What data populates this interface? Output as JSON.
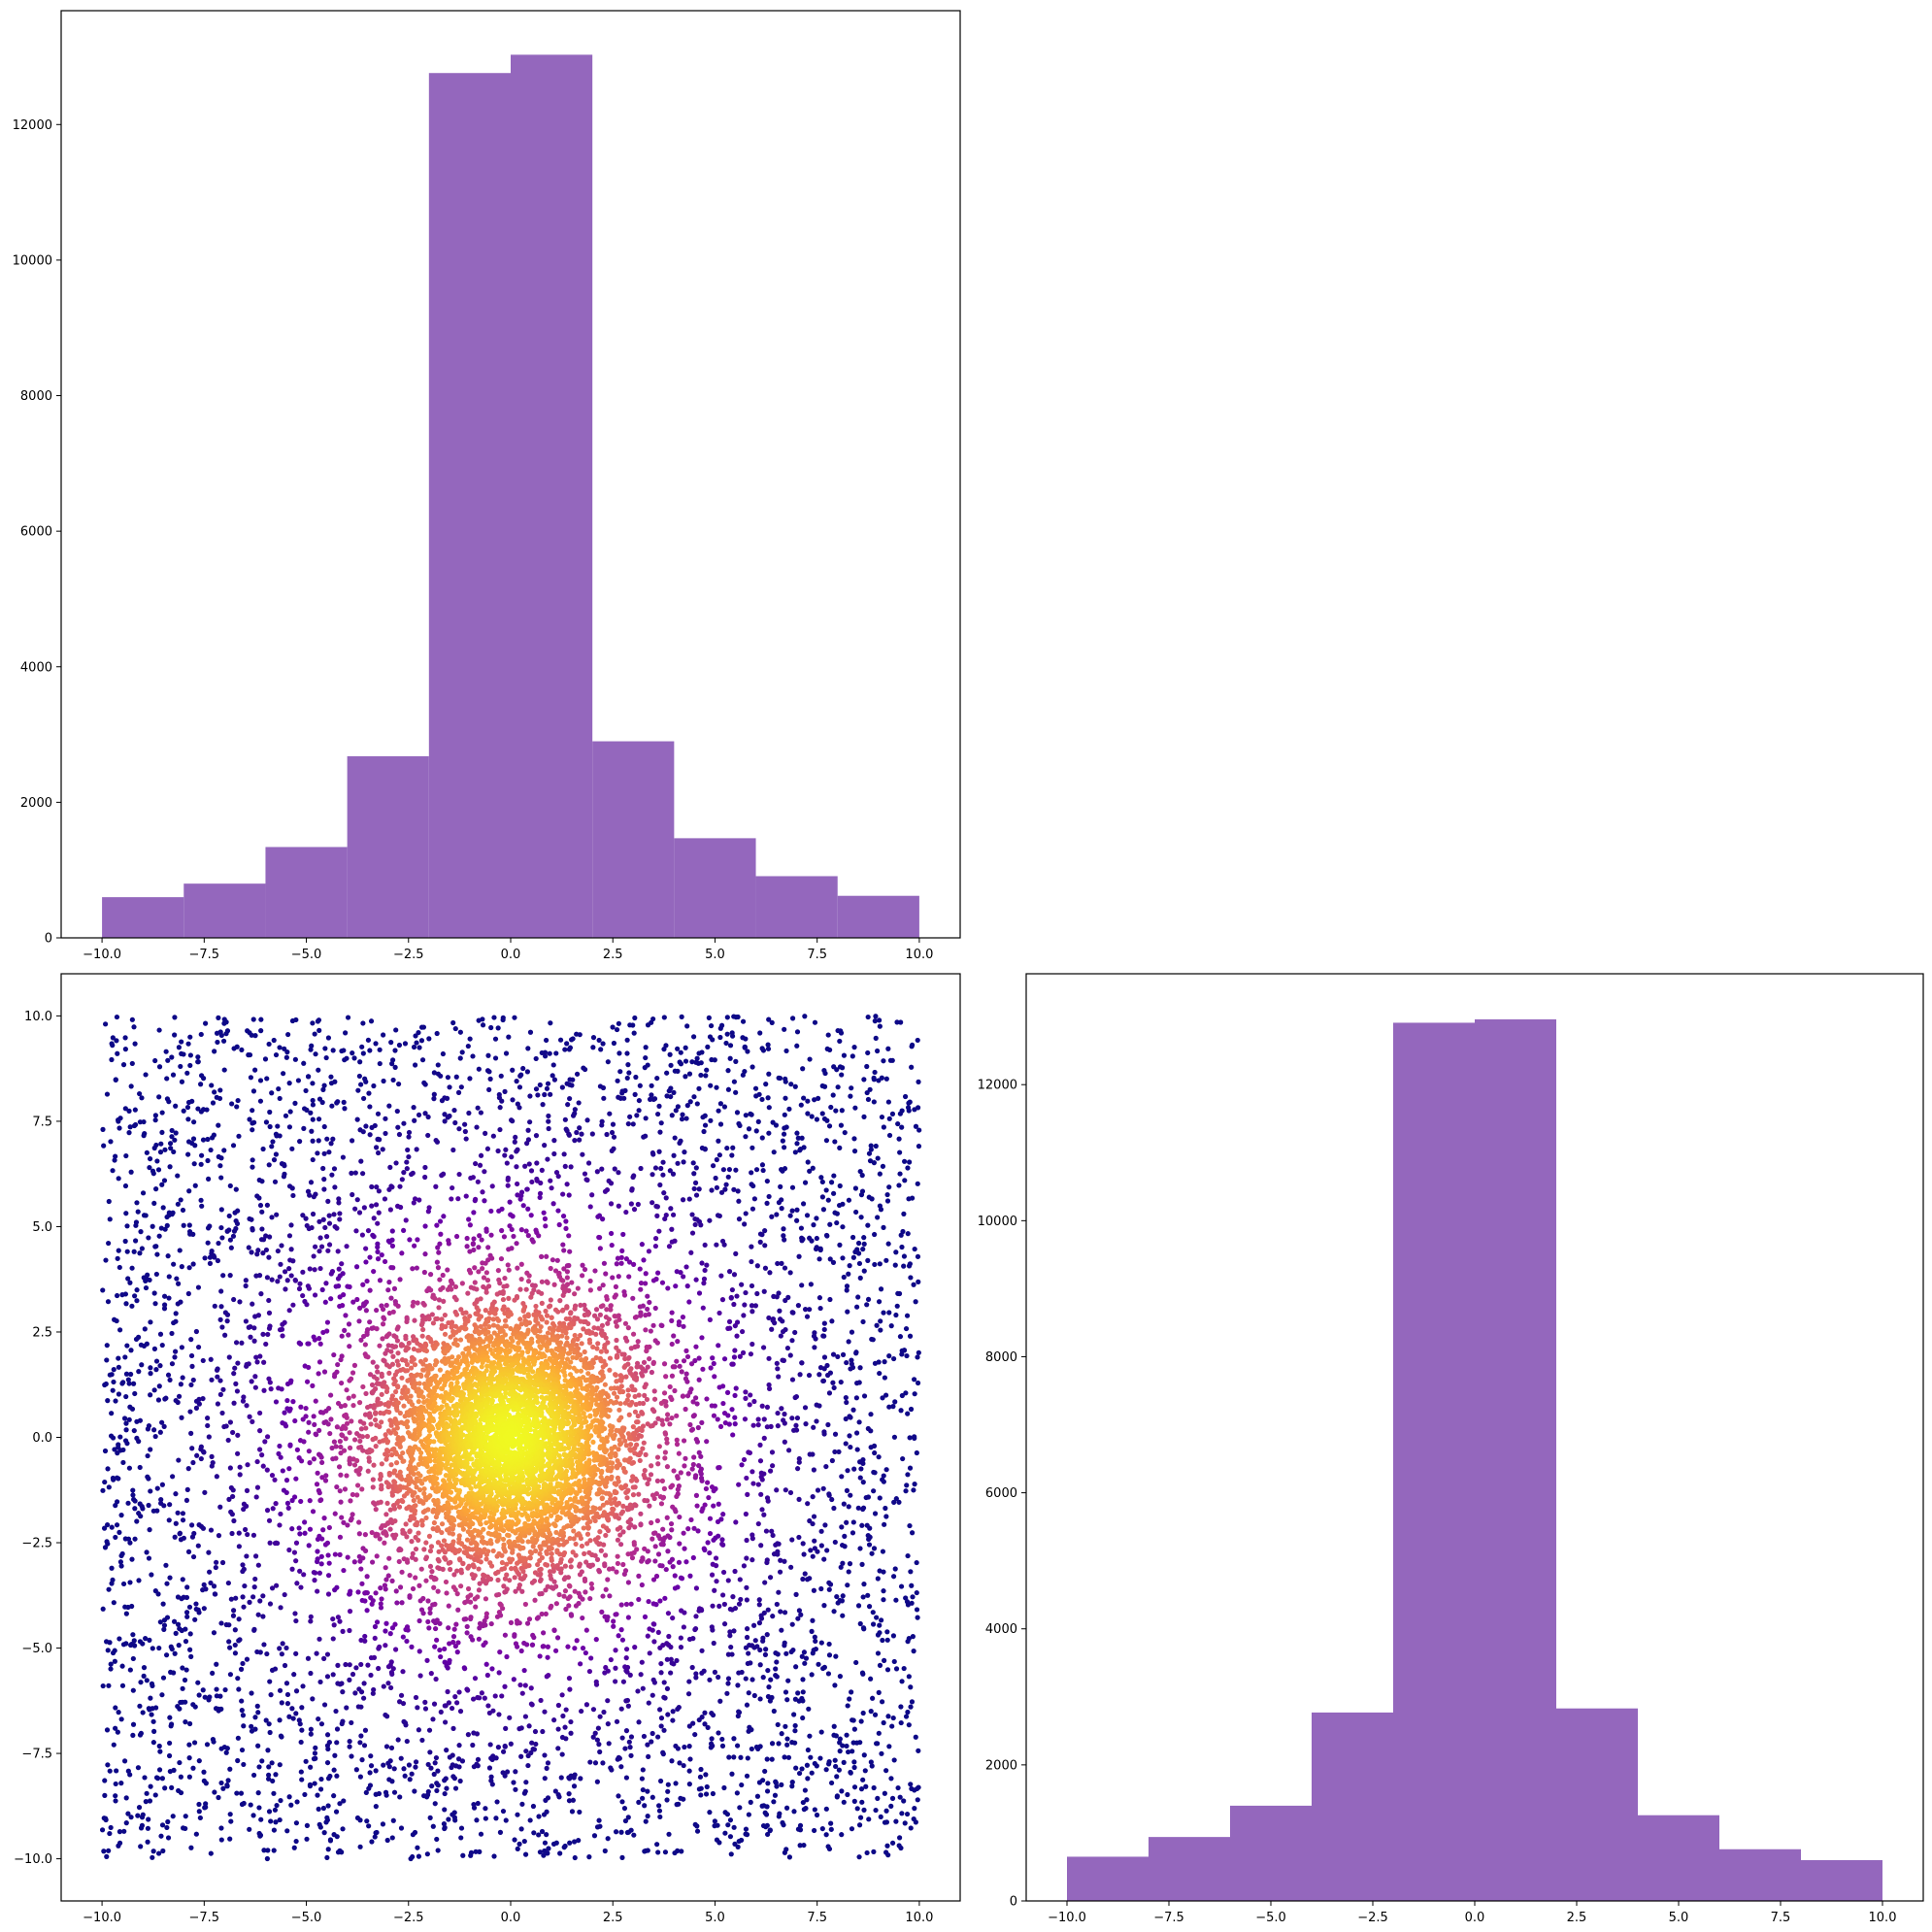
{
  "chart_data": [
    {
      "id": "hist_x",
      "type": "bar",
      "subtype": "histogram",
      "bin_edges": [
        -10,
        -8,
        -6,
        -4,
        -2,
        0,
        2,
        4,
        6,
        8,
        10
      ],
      "values": [
        600,
        800,
        1340,
        2680,
        12760,
        13030,
        2900,
        1470,
        910,
        620
      ],
      "color": "#9467bd",
      "xlim": [
        -11,
        11
      ],
      "ylim": [
        0,
        13680
      ],
      "xticks": [
        -10,
        -7.5,
        -5,
        -2.5,
        0,
        2.5,
        5,
        7.5,
        10
      ],
      "xtick_labels": [
        "−10.0",
        "−7.5",
        "−5.0",
        "−2.5",
        "0.0",
        "2.5",
        "5.0",
        "7.5",
        "10.0"
      ],
      "yticks": [
        0,
        2000,
        4000,
        6000,
        8000,
        10000,
        12000
      ],
      "ytick_labels": [
        "0",
        "2000",
        "4000",
        "6000",
        "8000",
        "10000",
        "12000"
      ],
      "title": "",
      "xlabel": "",
      "ylabel": "",
      "grid": false
    },
    {
      "id": "scatter_xy",
      "type": "scatter",
      "description_of_points": "about 10000 points, uniform over the square [-10,10] x [-10,10] blended with a dense Gaussian core at the origin; color encodes density (plasma colormap: dark blue outside, purple, pink, orange, yellow at center)",
      "x_range": [
        -10,
        10
      ],
      "y_range": [
        -10,
        10
      ],
      "n_points_approx": 10000,
      "colormap": [
        "#0d0887",
        "#6a00a8",
        "#b12a90",
        "#e16462",
        "#fca636",
        "#f0f921"
      ],
      "xlim": [
        -11,
        11
      ],
      "ylim": [
        -11,
        11
      ],
      "xticks": [
        -10,
        -7.5,
        -5,
        -2.5,
        0,
        2.5,
        5,
        7.5,
        10
      ],
      "xtick_labels": [
        "−10.0",
        "−7.5",
        "−5.0",
        "−2.5",
        "0.0",
        "2.5",
        "5.0",
        "7.5",
        "10.0"
      ],
      "yticks": [
        -10,
        -7.5,
        -5,
        -2.5,
        0,
        2.5,
        5,
        7.5,
        10
      ],
      "ytick_labels": [
        "−10.0",
        "−7.5",
        "−5.0",
        "−2.5",
        "0.0",
        "2.5",
        "5.0",
        "7.5",
        "10.0"
      ],
      "title": "",
      "xlabel": "",
      "ylabel": "",
      "grid": false
    },
    {
      "id": "hist_y",
      "type": "bar",
      "subtype": "histogram",
      "bin_edges": [
        -10,
        -8,
        -6,
        -4,
        -2,
        0,
        2,
        4,
        6,
        8,
        10
      ],
      "values": [
        650,
        940,
        1400,
        2770,
        12910,
        12960,
        2830,
        1260,
        760,
        600
      ],
      "color": "#9467bd",
      "xlim": [
        -11,
        11
      ],
      "ylim": [
        0,
        13630
      ],
      "xticks": [
        -10,
        -7.5,
        -5,
        -2.5,
        0,
        2.5,
        5,
        7.5,
        10
      ],
      "xtick_labels": [
        "−10.0",
        "−7.5",
        "−5.0",
        "−2.5",
        "0.0",
        "2.5",
        "5.0",
        "7.5",
        "10.0"
      ],
      "yticks": [
        0,
        2000,
        4000,
        6000,
        8000,
        10000,
        12000
      ],
      "ytick_labels": [
        "0",
        "2000",
        "4000",
        "6000",
        "8000",
        "10000",
        "12000"
      ],
      "title": "",
      "xlabel": "",
      "ylabel": "",
      "grid": false
    }
  ]
}
